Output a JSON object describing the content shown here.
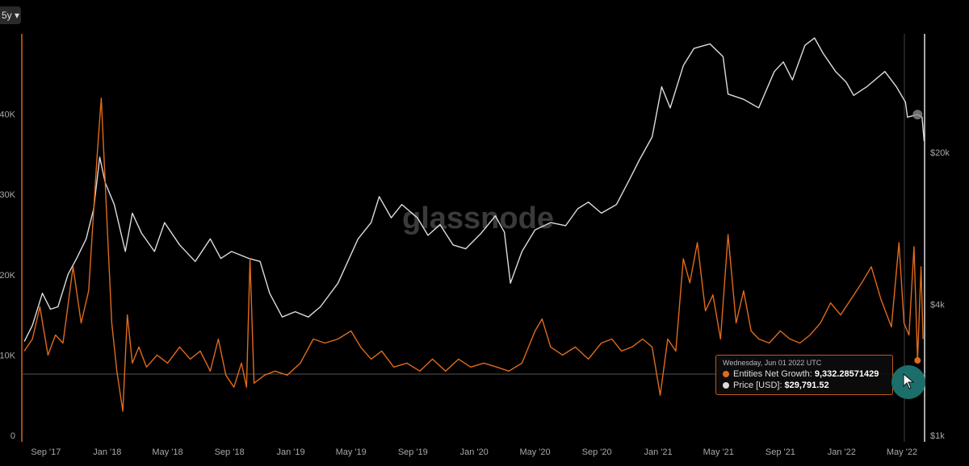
{
  "toolbar": {
    "range_label": "5y ▾"
  },
  "watermark": "glassnode",
  "tooltip": {
    "date": "Wednesday, Jun 01 2022 UTC",
    "series": [
      {
        "label": "Entities Net Growth:",
        "value": "9,332.28571429",
        "color": "#e06a1c"
      },
      {
        "label": "Price [USD]:",
        "value": "$29,791.52",
        "color": "#dcdcdc"
      }
    ]
  },
  "cursor": {
    "icon": "cursor-arrow-icon"
  },
  "chart_data": {
    "type": "line",
    "x_tick_labels": [
      "Sep '17",
      "Jan '18",
      "May '18",
      "Sep '18",
      "Jan '19",
      "May '19",
      "Sep '19",
      "Jan '20",
      "May '20",
      "Sep '20",
      "Jan '21",
      "May '21",
      "Sep '21",
      "Jan '22",
      "May '22"
    ],
    "x_range": [
      "2017-07-15",
      "2022-06-15"
    ],
    "y_left_ticks": [
      "0",
      "10K",
      "20K",
      "30K",
      "40K"
    ],
    "y_left_range": [
      0,
      50000
    ],
    "y_right_ticks": [
      "$1k",
      "$4k",
      "$20k"
    ],
    "y_right_scale": "log",
    "y_right_range": [
      1000,
      70000
    ],
    "grid": false,
    "series": [
      {
        "name": "Entities Net Growth",
        "axis": "left",
        "color": "#e06a1c",
        "x": [
          "2017-07-20",
          "2017-08-05",
          "2017-08-20",
          "2017-09-05",
          "2017-09-20",
          "2017-10-05",
          "2017-10-25",
          "2017-11-10",
          "2017-11-25",
          "2017-12-05",
          "2017-12-12",
          "2017-12-20",
          "2018-01-01",
          "2018-01-10",
          "2018-01-20",
          "2018-02-01",
          "2018-02-10",
          "2018-02-20",
          "2018-03-05",
          "2018-03-20",
          "2018-04-10",
          "2018-05-01",
          "2018-05-25",
          "2018-06-15",
          "2018-07-05",
          "2018-07-25",
          "2018-08-10",
          "2018-08-25",
          "2018-09-10",
          "2018-09-25",
          "2018-10-05",
          "2018-10-12",
          "2018-10-20",
          "2018-11-10",
          "2018-12-01",
          "2018-12-25",
          "2019-01-20",
          "2019-02-15",
          "2019-03-10",
          "2019-04-05",
          "2019-05-01",
          "2019-05-20",
          "2019-06-10",
          "2019-07-01",
          "2019-07-25",
          "2019-08-20",
          "2019-09-15",
          "2019-10-10",
          "2019-11-05",
          "2019-12-01",
          "2019-12-25",
          "2020-01-20",
          "2020-02-15",
          "2020-03-10",
          "2020-04-05",
          "2020-05-01",
          "2020-05-15",
          "2020-06-01",
          "2020-06-25",
          "2020-07-20",
          "2020-08-15",
          "2020-09-10",
          "2020-10-01",
          "2020-10-20",
          "2020-11-10",
          "2020-12-01",
          "2020-12-20",
          "2021-01-05",
          "2021-01-20",
          "2021-02-05",
          "2021-02-20",
          "2021-03-05",
          "2021-03-20",
          "2021-04-05",
          "2021-04-20",
          "2021-05-05",
          "2021-05-20",
          "2021-06-05",
          "2021-06-20",
          "2021-07-05",
          "2021-07-20",
          "2021-08-10",
          "2021-09-01",
          "2021-09-20",
          "2021-10-10",
          "2021-10-30",
          "2021-11-20",
          "2021-12-10",
          "2021-12-30",
          "2022-01-20",
          "2022-02-10",
          "2022-03-01",
          "2022-03-20",
          "2022-04-10",
          "2022-04-25",
          "2022-05-05",
          "2022-05-15",
          "2022-05-25",
          "2022-06-01",
          "2022-06-08",
          "2022-06-12"
        ],
        "y": [
          10500,
          12000,
          16000,
          10000,
          12500,
          11500,
          21000,
          14000,
          18000,
          28000,
          35000,
          42000,
          26000,
          14000,
          8000,
          3000,
          15000,
          9000,
          11000,
          8500,
          10000,
          9000,
          11000,
          9500,
          10500,
          8000,
          12000,
          7500,
          6000,
          9000,
          6000,
          22000,
          6500,
          7500,
          8000,
          7500,
          9000,
          12000,
          11500,
          12000,
          13000,
          11000,
          9500,
          10500,
          8500,
          9000,
          8000,
          9500,
          8000,
          9500,
          8500,
          9000,
          8500,
          8000,
          9000,
          13000,
          14500,
          11000,
          10000,
          11000,
          9500,
          11500,
          12000,
          10500,
          11000,
          12000,
          11000,
          5000,
          12000,
          10500,
          22000,
          19000,
          24000,
          15500,
          17500,
          12000,
          25000,
          14000,
          18000,
          13000,
          12000,
          11500,
          13000,
          12000,
          11500,
          12500,
          14000,
          16500,
          15000,
          17000,
          19000,
          21000,
          17000,
          13500,
          24000,
          14000,
          12500,
          23500,
          9332,
          21000,
          12000
        ]
      },
      {
        "name": "Price [USD]",
        "axis": "right",
        "color": "#dcdcdc",
        "x": [
          "2017-07-20",
          "2017-08-05",
          "2017-08-25",
          "2017-09-10",
          "2017-09-25",
          "2017-10-15",
          "2017-11-01",
          "2017-11-20",
          "2017-12-05",
          "2017-12-17",
          "2017-12-28",
          "2018-01-15",
          "2018-02-06",
          "2018-02-20",
          "2018-03-10",
          "2018-04-05",
          "2018-04-25",
          "2018-05-25",
          "2018-06-25",
          "2018-07-25",
          "2018-08-15",
          "2018-09-05",
          "2018-10-10",
          "2018-11-01",
          "2018-11-20",
          "2018-12-15",
          "2019-01-10",
          "2019-02-05",
          "2019-03-01",
          "2019-04-05",
          "2019-05-15",
          "2019-06-10",
          "2019-06-26",
          "2019-07-20",
          "2019-08-10",
          "2019-09-10",
          "2019-10-01",
          "2019-10-25",
          "2019-11-20",
          "2019-12-15",
          "2020-01-15",
          "2020-02-12",
          "2020-03-01",
          "2020-03-13",
          "2020-04-05",
          "2020-05-01",
          "2020-06-01",
          "2020-07-01",
          "2020-07-25",
          "2020-08-15",
          "2020-09-10",
          "2020-10-10",
          "2020-11-05",
          "2020-11-25",
          "2020-12-20",
          "2021-01-08",
          "2021-01-25",
          "2021-02-20",
          "2021-03-13",
          "2021-04-14",
          "2021-05-10",
          "2021-05-20",
          "2021-06-20",
          "2021-07-20",
          "2021-08-20",
          "2021-09-07",
          "2021-09-25",
          "2021-10-20",
          "2021-11-08",
          "2021-11-25",
          "2021-12-20",
          "2022-01-10",
          "2022-01-25",
          "2022-02-20",
          "2022-03-28",
          "2022-04-20",
          "2022-05-08",
          "2022-05-12",
          "2022-06-01",
          "2022-06-10",
          "2022-06-14"
        ],
        "y": [
          2700,
          3200,
          4500,
          3800,
          3900,
          5500,
          6500,
          8000,
          11000,
          19000,
          14500,
          11500,
          7000,
          10500,
          8500,
          7000,
          9500,
          7500,
          6300,
          8000,
          6500,
          7000,
          6500,
          6300,
          4500,
          3500,
          3700,
          3500,
          3900,
          5000,
          8000,
          9500,
          12500,
          10000,
          11500,
          10000,
          8300,
          9300,
          7500,
          7200,
          8500,
          10200,
          8600,
          5000,
          7000,
          8800,
          9500,
          9200,
          11000,
          11800,
          10500,
          11500,
          15000,
          18500,
          23500,
          40000,
          32000,
          50000,
          60000,
          63000,
          55000,
          37000,
          35000,
          32000,
          47000,
          52000,
          43000,
          62000,
          67000,
          57000,
          47000,
          42000,
          36500,
          40000,
          47000,
          40000,
          34000,
          29000,
          29791,
          29000,
          22500
        ]
      }
    ],
    "hover_date": "2022-06-01"
  }
}
